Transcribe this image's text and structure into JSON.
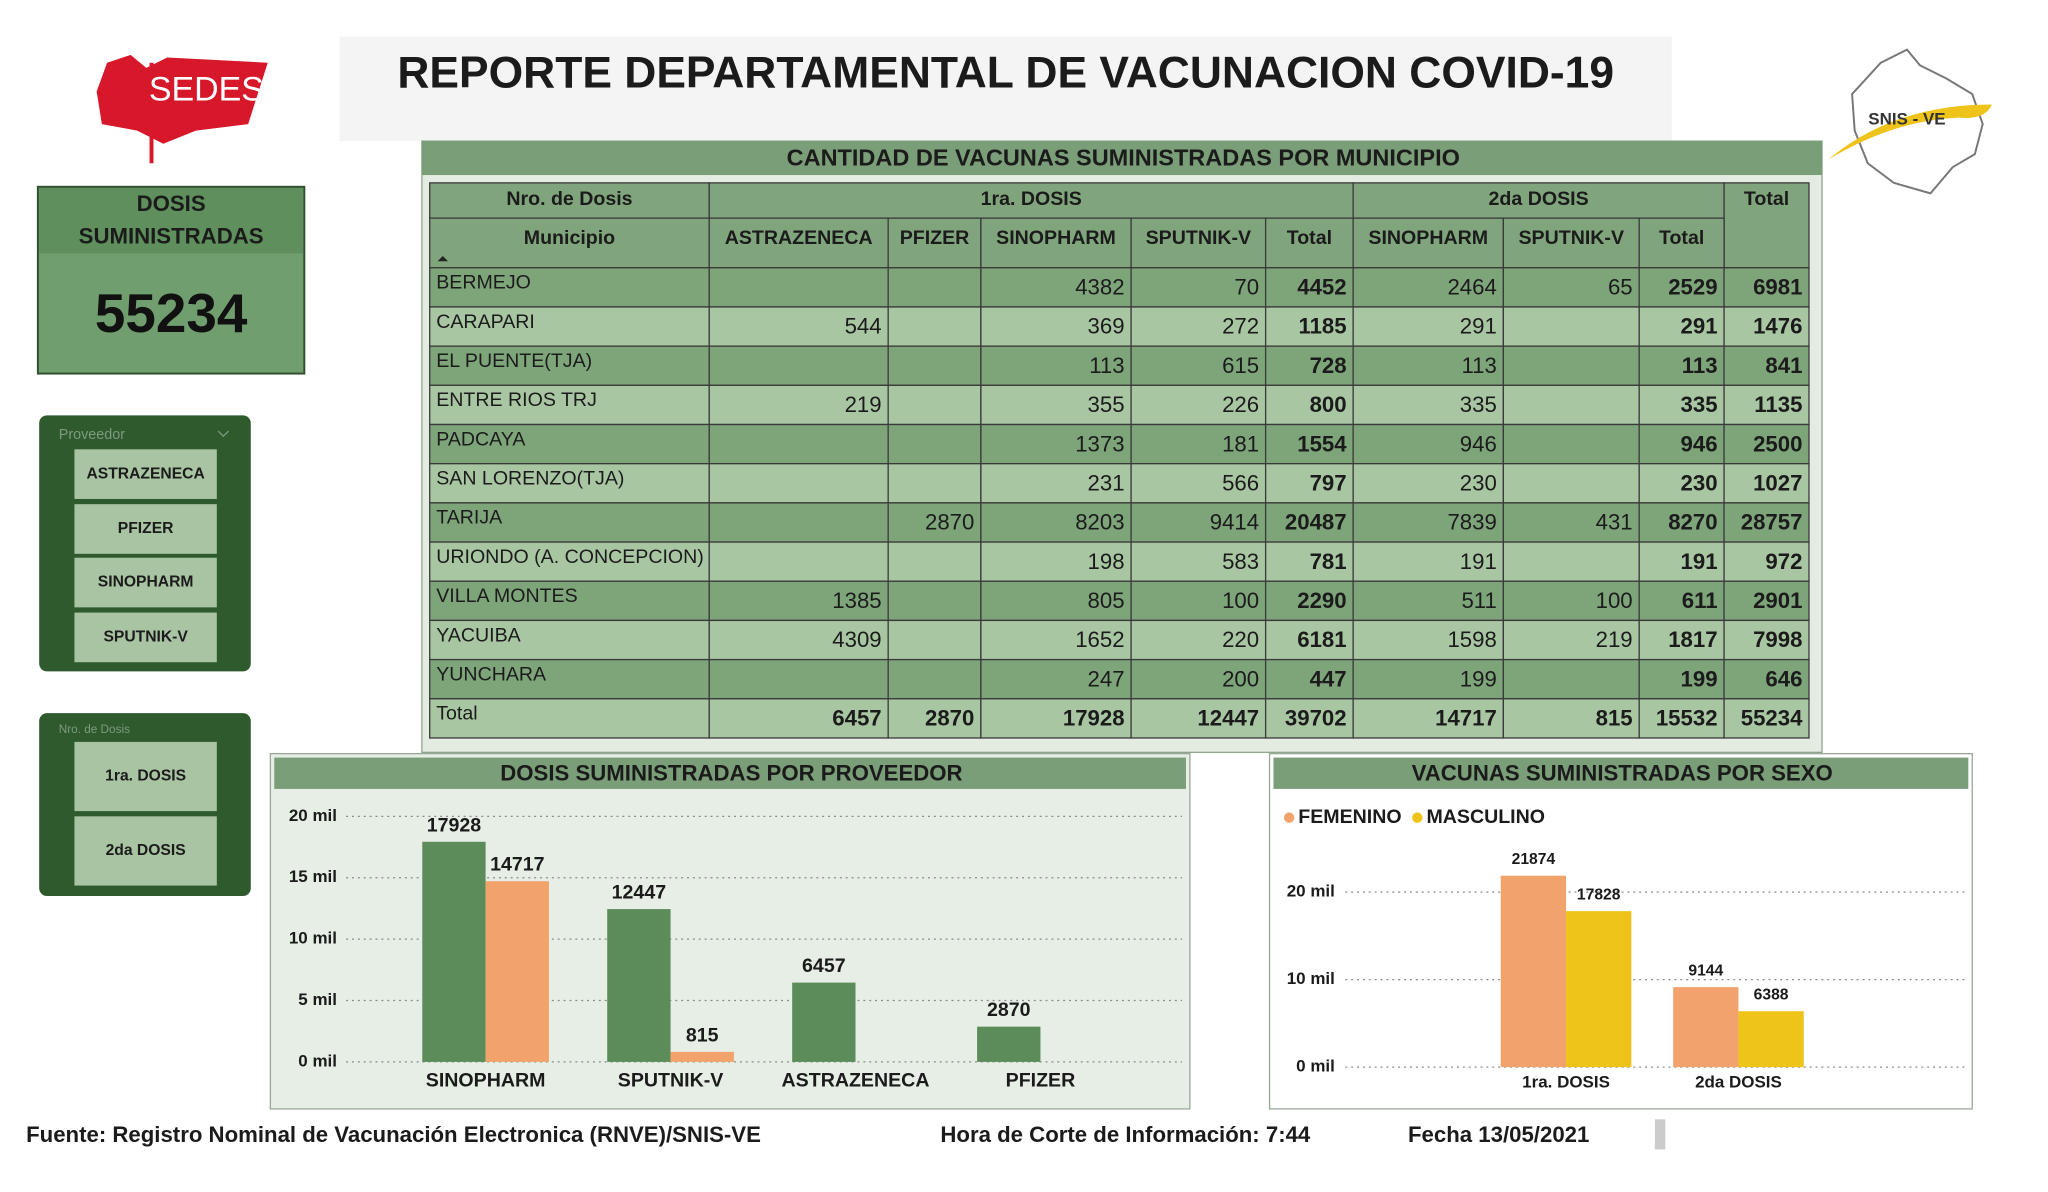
{
  "header": {
    "title": "REPORTE DEPARTAMENTAL DE VACUNACION COVID-19",
    "logo_left": "SEDES",
    "logo_right": "SNIS - VE"
  },
  "kpi": {
    "label_line1": "DOSIS",
    "label_line2": "SUMINISTRADAS",
    "value": 55234
  },
  "slicers": [
    {
      "title": "Proveedor",
      "options": [
        "ASTRAZENECA",
        "PFIZER",
        "SINOPHARM",
        "SPUTNIK-V"
      ]
    },
    {
      "title": "Nro. de Dosis",
      "options": [
        "1ra. DOSIS",
        "2da DOSIS"
      ]
    }
  ],
  "table": {
    "title": "CANTIDAD DE VACUNAS SUMINISTRADAS POR MUNICIPIO",
    "group_header": [
      "Nro. de Dosis",
      "1ra. DOSIS",
      "2da DOSIS",
      "Total"
    ],
    "columns": [
      "Municipio",
      "ASTRAZENECA",
      "PFIZER",
      "SINOPHARM",
      "SPUTNIK-V",
      "Total",
      "SINOPHARM",
      "SPUTNIK-V",
      "Total"
    ],
    "rows": [
      [
        "BERMEJO",
        null,
        null,
        4382,
        70,
        4452,
        2464,
        65,
        2529,
        6981
      ],
      [
        "CARAPARI",
        544,
        null,
        369,
        272,
        1185,
        291,
        null,
        291,
        1476
      ],
      [
        "EL PUENTE(TJA)",
        null,
        null,
        113,
        615,
        728,
        113,
        null,
        113,
        841
      ],
      [
        "ENTRE RIOS TRJ",
        219,
        null,
        355,
        226,
        800,
        335,
        null,
        335,
        1135
      ],
      [
        "PADCAYA",
        null,
        null,
        1373,
        181,
        1554,
        946,
        null,
        946,
        2500
      ],
      [
        "SAN LORENZO(TJA)",
        null,
        null,
        231,
        566,
        797,
        230,
        null,
        230,
        1027
      ],
      [
        "TARIJA",
        null,
        2870,
        8203,
        9414,
        20487,
        7839,
        431,
        8270,
        28757
      ],
      [
        "URIONDO (A. CONCEPCION)",
        null,
        null,
        198,
        583,
        781,
        191,
        null,
        191,
        972
      ],
      [
        "VILLA MONTES",
        1385,
        null,
        805,
        100,
        2290,
        511,
        100,
        611,
        2901
      ],
      [
        "YACUIBA",
        4309,
        null,
        1652,
        220,
        6181,
        1598,
        219,
        1817,
        7998
      ],
      [
        "YUNCHARA",
        null,
        null,
        247,
        200,
        447,
        199,
        null,
        199,
        646
      ],
      [
        "Total",
        6457,
        2870,
        17928,
        12447,
        39702,
        14717,
        815,
        15532,
        55234
      ]
    ]
  },
  "chart_data": [
    {
      "type": "bar",
      "title": "DOSIS SUMINISTRADAS POR PROVEEDOR",
      "categories": [
        "SINOPHARM",
        "SPUTNIK-V",
        "ASTRAZENECA",
        "PFIZER"
      ],
      "series": [
        {
          "color": "#5b8c5a",
          "values": [
            17928,
            12447,
            6457,
            2870
          ]
        },
        {
          "color": "#f2a36b",
          "values": [
            14717,
            815,
            null,
            null
          ]
        }
      ],
      "ylim": [
        0,
        20000
      ],
      "yticks": [
        {
          "value": 0,
          "label": "0 mil"
        },
        {
          "value": 5000,
          "label": "5 mil"
        },
        {
          "value": 10000,
          "label": "10 mil"
        },
        {
          "value": 15000,
          "label": "15 mil"
        },
        {
          "value": 20000,
          "label": "20 mil"
        }
      ],
      "grid": true
    },
    {
      "type": "bar",
      "title": "VACUNAS SUMINISTRADAS POR SEXO",
      "categories": [
        "1ra. DOSIS",
        "2da DOSIS"
      ],
      "series": [
        {
          "name": "FEMENINO",
          "color": "#f2a36b",
          "values": [
            21874,
            9144
          ]
        },
        {
          "name": "MASCULINO",
          "color": "#eec41b",
          "values": [
            17828,
            6388
          ]
        }
      ],
      "ylim": [
        0,
        25000
      ],
      "yticks": [
        {
          "value": 0,
          "label": "0 mil"
        },
        {
          "value": 10000,
          "label": "10 mil"
        },
        {
          "value": 20000,
          "label": "20 mil"
        }
      ],
      "grid": true,
      "legend": "top-left"
    }
  ],
  "footer": {
    "source": "Fuente: Registro Nominal de Vacunación Electronica (RNVE)/SNIS-VE",
    "time": "Hora de Corte de Información: 7:44",
    "date": "Fecha 13/05/2021"
  }
}
